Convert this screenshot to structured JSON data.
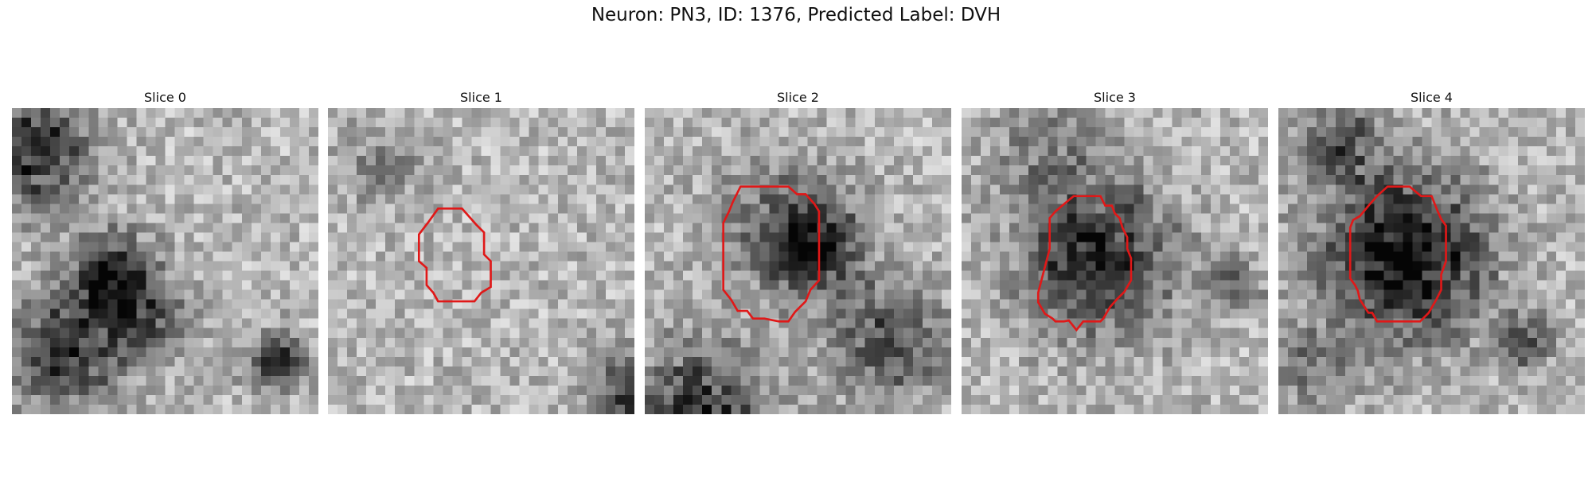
{
  "figure": {
    "title": "Neuron: PN3, ID: 1376, Predicted Label: DVH",
    "panels": [
      {
        "label": "Slice 0",
        "outline": false
      },
      {
        "label": "Slice 1",
        "outline": true
      },
      {
        "label": "Slice 2",
        "outline": true
      },
      {
        "label": "Slice 3",
        "outline": true
      },
      {
        "label": "Slice 4",
        "outline": true
      }
    ],
    "colors": {
      "outline": "#e01818",
      "background": "#ffffff"
    },
    "colormap": "grayscale"
  }
}
